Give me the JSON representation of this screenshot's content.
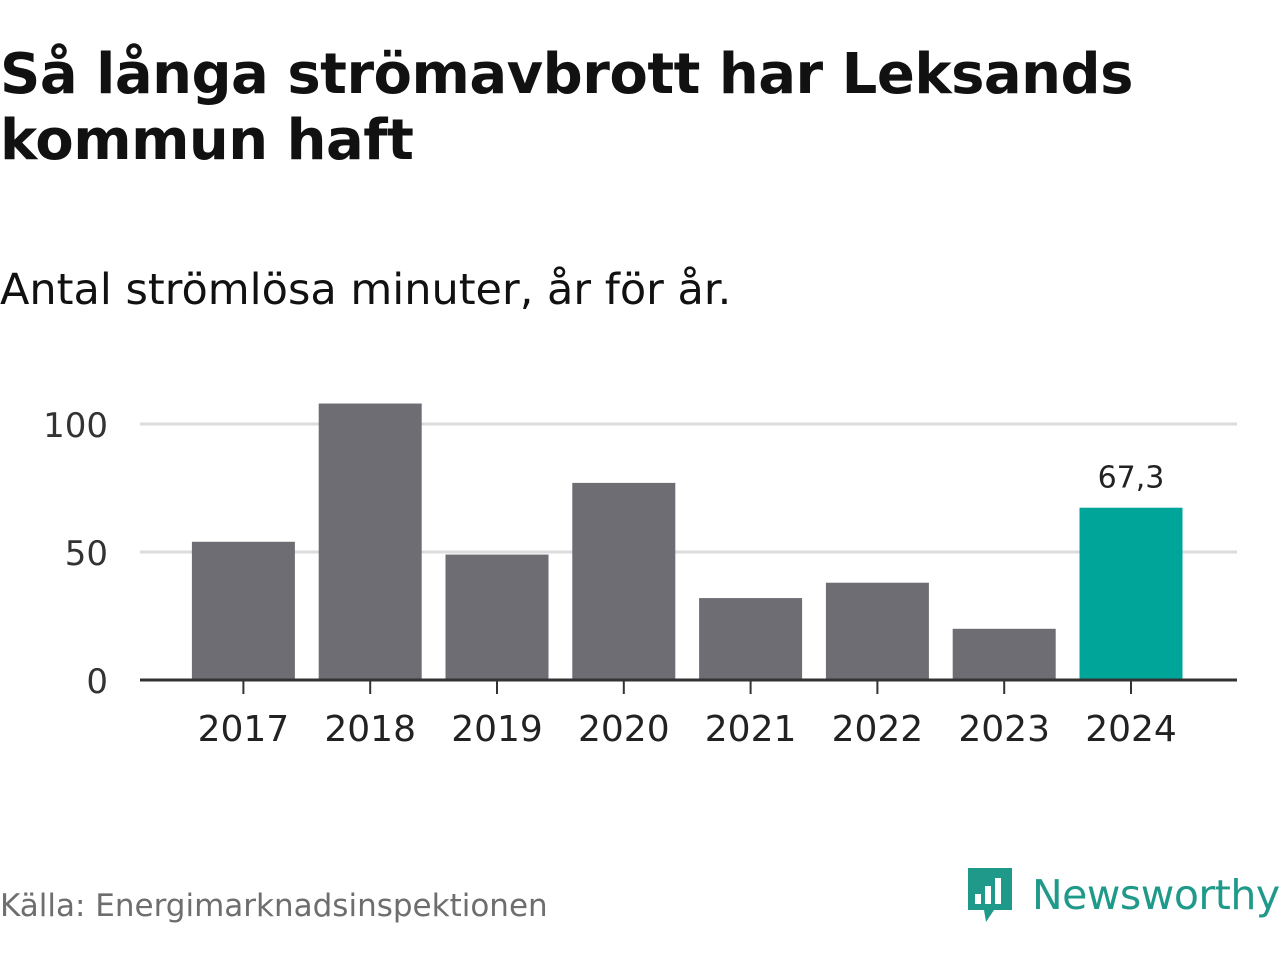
{
  "title": "Så långa strömavbrott har Leksands kommun haft",
  "subtitle": "Antal strömlösa minuter, år för år.",
  "source": "Källa: Energimarknadsinspektionen",
  "logo": {
    "text": "Newsworthy",
    "icon": "newsworthy-chart-icon"
  },
  "colors": {
    "bar": "#6e6d73",
    "highlight": "#00a59a",
    "grid": "#dcdcdc",
    "axis": "#333333",
    "brand": "#1f9a8a"
  },
  "chart_data": {
    "type": "bar",
    "categories": [
      "2017",
      "2018",
      "2019",
      "2020",
      "2021",
      "2022",
      "2023",
      "2024"
    ],
    "values": [
      54,
      108,
      49,
      77,
      32,
      38,
      20,
      67.3
    ],
    "highlight_index": 7,
    "data_labels": [
      {
        "index": 7,
        "text": "67,3"
      }
    ],
    "yticks": [
      0,
      50,
      100
    ],
    "ylim": [
      0,
      110
    ],
    "grid": true,
    "xlabel": "",
    "ylabel": ""
  }
}
